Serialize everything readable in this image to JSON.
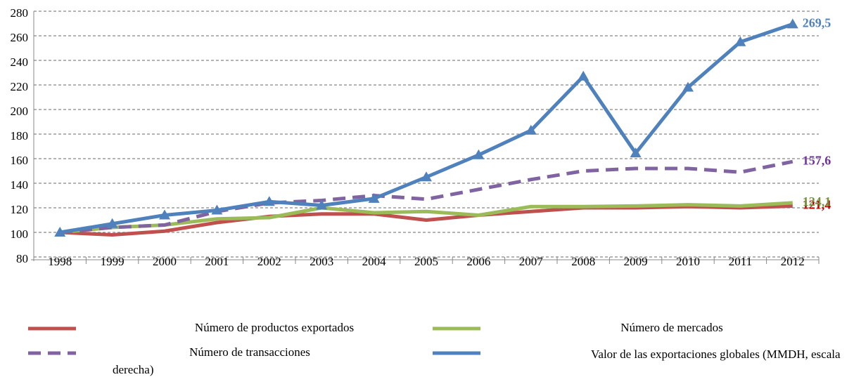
{
  "chart_data": {
    "type": "line",
    "categories": [
      "1998",
      "1999",
      "2000",
      "2001",
      "2002",
      "2003",
      "2004",
      "2005",
      "2006",
      "2007",
      "2008",
      "2009",
      "2010",
      "2011",
      "2012"
    ],
    "ylim": [
      80,
      280
    ],
    "yticks": [
      80,
      100,
      120,
      140,
      160,
      180,
      200,
      220,
      240,
      260,
      280
    ],
    "grid": true,
    "series": [
      {
        "name": "Número de productos exportados",
        "color": "#c0504d",
        "label_color": "#c00000",
        "values": [
          100,
          98,
          101,
          108,
          113,
          115,
          115,
          110,
          114,
          117,
          120,
          120,
          121,
          120,
          121.4
        ],
        "value_labels": [
          null,
          null,
          null,
          null,
          null,
          null,
          null,
          null,
          null,
          null,
          null,
          null,
          null,
          null,
          "121,4"
        ]
      },
      {
        "name": "Número de mercados",
        "color": "#9bbb59",
        "label_color": "#77933c",
        "values": [
          100,
          104,
          106,
          111,
          112,
          120,
          116,
          117,
          114,
          121,
          121,
          121.5,
          122.5,
          121.5,
          124.1
        ],
        "value_labels": [
          null,
          null,
          null,
          null,
          null,
          null,
          null,
          null,
          null,
          null,
          null,
          null,
          null,
          null,
          "124,1"
        ]
      },
      {
        "name": "Número de transacciones",
        "color": "#8064a2",
        "label_color": "#7030a0",
        "dash": true,
        "values": [
          100,
          104,
          106,
          117,
          124,
          126,
          130,
          127,
          135,
          143,
          150,
          152,
          152,
          149,
          157.6
        ],
        "value_labels": [
          null,
          null,
          null,
          null,
          null,
          null,
          null,
          null,
          null,
          null,
          null,
          null,
          null,
          null,
          "157,6"
        ]
      },
      {
        "name": "Valor de las exportaciones globales (MMDH, escala derecha)",
        "color": "#4f81bd",
        "label_color": "#4f81bd",
        "marker": "triangle",
        "values": [
          100,
          107,
          114,
          118,
          125,
          122,
          127.5,
          145,
          163,
          183,
          227,
          164.5,
          218,
          255,
          269.5
        ],
        "value_labels": [
          null,
          null,
          null,
          null,
          null,
          null,
          null,
          null,
          null,
          null,
          null,
          null,
          null,
          null,
          "269,5"
        ]
      }
    ]
  }
}
